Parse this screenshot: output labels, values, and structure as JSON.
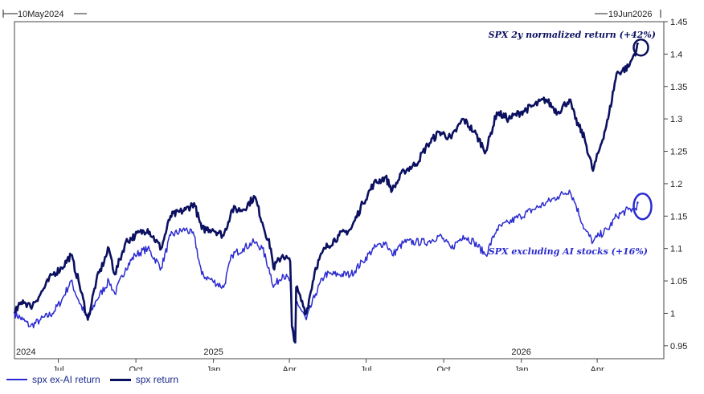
{
  "chart_data": {
    "type": "line",
    "top_left_label": "10May2024",
    "top_right_label": "19Jun2026",
    "x_range": [
      "2024-05-10",
      "2026-06-19"
    ],
    "ylim": [
      0.93,
      1.45
    ],
    "y_ticks": [
      0.95,
      1,
      1.05,
      1.1,
      1.15,
      1.2,
      1.25,
      1.3,
      1.35,
      1.4,
      1.45
    ],
    "y_tick_labels": [
      "0.95",
      "1",
      "1.05",
      "1.1",
      "1.15",
      "1.2",
      "1.25",
      "1.3",
      "1.35",
      "1.4",
      "1.45"
    ],
    "x_ticks": [
      {
        "date": "2024-07-01",
        "label": "Jul"
      },
      {
        "date": "2024-10-01",
        "label": "Oct"
      },
      {
        "date": "2025-01-01",
        "label": "Jan"
      },
      {
        "date": "2025-04-01",
        "label": "Apr"
      },
      {
        "date": "2025-07-01",
        "label": "Jul"
      },
      {
        "date": "2025-10-01",
        "label": "Oct"
      },
      {
        "date": "2026-01-01",
        "label": "Jan"
      },
      {
        "date": "2026-04-01",
        "label": "Apr"
      }
    ],
    "year_labels": [
      {
        "date": "2024-05-10",
        "label": "2024"
      },
      {
        "date": "2025-01-01",
        "label": "2025"
      },
      {
        "date": "2026-01-01",
        "label": "2026"
      }
    ],
    "grid": false,
    "legend_position": "bottom-left",
    "series": [
      {
        "name": "spx ex-AI return",
        "color": "#2b2bd0",
        "width": 1.5,
        "points": [
          [
            "2024-05-10",
            1.0
          ],
          [
            "2024-05-20",
            0.99
          ],
          [
            "2024-05-29",
            0.98
          ],
          [
            "2024-06-10",
            0.99
          ],
          [
            "2024-06-24",
            1.0
          ],
          [
            "2024-07-05",
            1.02
          ],
          [
            "2024-07-16",
            1.05
          ],
          [
            "2024-07-25",
            1.02
          ],
          [
            "2024-08-05",
            0.99
          ],
          [
            "2024-08-15",
            1.02
          ],
          [
            "2024-08-30",
            1.05
          ],
          [
            "2024-09-06",
            1.03
          ],
          [
            "2024-09-19",
            1.07
          ],
          [
            "2024-09-30",
            1.09
          ],
          [
            "2024-10-15",
            1.1
          ],
          [
            "2024-10-31",
            1.07
          ],
          [
            "2024-11-11",
            1.12
          ],
          [
            "2024-11-29",
            1.13
          ],
          [
            "2024-12-09",
            1.12
          ],
          [
            "2024-12-18",
            1.06
          ],
          [
            "2024-12-31",
            1.05
          ],
          [
            "2025-01-13",
            1.04
          ],
          [
            "2025-01-23",
            1.09
          ],
          [
            "2025-02-05",
            1.1
          ],
          [
            "2025-02-18",
            1.11
          ],
          [
            "2025-02-28",
            1.1
          ],
          [
            "2025-03-10",
            1.06
          ],
          [
            "2025-03-13",
            1.04
          ],
          [
            "2025-03-24",
            1.06
          ],
          [
            "2025-04-02",
            1.05
          ],
          [
            "2025-04-04",
            0.98
          ],
          [
            "2025-04-08",
            0.96
          ],
          [
            "2025-04-09",
            1.02
          ],
          [
            "2025-04-21",
            0.99
          ],
          [
            "2025-05-02",
            1.03
          ],
          [
            "2025-05-13",
            1.06
          ],
          [
            "2025-05-30",
            1.06
          ],
          [
            "2025-06-13",
            1.06
          ],
          [
            "2025-06-27",
            1.08
          ],
          [
            "2025-07-10",
            1.1
          ],
          [
            "2025-07-24",
            1.11
          ],
          [
            "2025-08-01",
            1.09
          ],
          [
            "2025-08-15",
            1.11
          ],
          [
            "2025-08-29",
            1.11
          ],
          [
            "2025-09-12",
            1.11
          ],
          [
            "2025-09-26",
            1.12
          ],
          [
            "2025-10-10",
            1.1
          ],
          [
            "2025-10-24",
            1.12
          ],
          [
            "2025-11-06",
            1.11
          ],
          [
            "2025-11-20",
            1.09
          ],
          [
            "2025-12-03",
            1.13
          ],
          [
            "2025-12-17",
            1.14
          ],
          [
            "2025-12-31",
            1.15
          ],
          [
            "2026-01-15",
            1.16
          ],
          [
            "2026-01-30",
            1.17
          ],
          [
            "2026-02-13",
            1.18
          ],
          [
            "2026-02-27",
            1.19
          ],
          [
            "2026-03-06",
            1.17
          ],
          [
            "2026-03-17",
            1.13
          ],
          [
            "2026-03-27",
            1.11
          ],
          [
            "2026-04-03",
            1.12
          ],
          [
            "2026-04-14",
            1.13
          ],
          [
            "2026-04-24",
            1.15
          ],
          [
            "2026-05-08",
            1.16
          ],
          [
            "2026-05-15",
            1.16
          ],
          [
            "2026-05-20",
            1.17
          ]
        ]
      },
      {
        "name": "spx return",
        "color": "#0b1060",
        "width": 2.6,
        "points": [
          [
            "2024-05-10",
            1.0
          ],
          [
            "2024-05-20",
            1.02
          ],
          [
            "2024-05-29",
            1.01
          ],
          [
            "2024-06-10",
            1.03
          ],
          [
            "2024-06-24",
            1.06
          ],
          [
            "2024-07-05",
            1.07
          ],
          [
            "2024-07-16",
            1.09
          ],
          [
            "2024-07-25",
            1.05
          ],
          [
            "2024-08-05",
            0.99
          ],
          [
            "2024-08-15",
            1.05
          ],
          [
            "2024-08-30",
            1.1
          ],
          [
            "2024-09-06",
            1.06
          ],
          [
            "2024-09-19",
            1.11
          ],
          [
            "2024-09-30",
            1.12
          ],
          [
            "2024-10-15",
            1.13
          ],
          [
            "2024-10-31",
            1.1
          ],
          [
            "2024-11-11",
            1.15
          ],
          [
            "2024-11-29",
            1.16
          ],
          [
            "2024-12-09",
            1.17
          ],
          [
            "2024-12-18",
            1.13
          ],
          [
            "2024-12-31",
            1.13
          ],
          [
            "2025-01-13",
            1.12
          ],
          [
            "2025-01-23",
            1.16
          ],
          [
            "2025-02-05",
            1.16
          ],
          [
            "2025-02-19",
            1.18
          ],
          [
            "2025-02-28",
            1.14
          ],
          [
            "2025-03-10",
            1.1
          ],
          [
            "2025-03-13",
            1.07
          ],
          [
            "2025-03-24",
            1.09
          ],
          [
            "2025-04-02",
            1.08
          ],
          [
            "2025-04-04",
            0.98
          ],
          [
            "2025-04-08",
            0.955
          ],
          [
            "2025-04-09",
            1.04
          ],
          [
            "2025-04-21",
            1.0
          ],
          [
            "2025-05-02",
            1.07
          ],
          [
            "2025-05-13",
            1.1
          ],
          [
            "2025-05-30",
            1.12
          ],
          [
            "2025-06-13",
            1.13
          ],
          [
            "2025-06-27",
            1.17
          ],
          [
            "2025-07-10",
            1.2
          ],
          [
            "2025-07-24",
            1.21
          ],
          [
            "2025-08-01",
            1.19
          ],
          [
            "2025-08-15",
            1.22
          ],
          [
            "2025-08-29",
            1.23
          ],
          [
            "2025-09-12",
            1.26
          ],
          [
            "2025-09-26",
            1.28
          ],
          [
            "2025-10-10",
            1.27
          ],
          [
            "2025-10-24",
            1.3
          ],
          [
            "2025-11-06",
            1.28
          ],
          [
            "2025-11-20",
            1.25
          ],
          [
            "2025-12-03",
            1.31
          ],
          [
            "2025-12-17",
            1.3
          ],
          [
            "2025-12-31",
            1.31
          ],
          [
            "2026-01-15",
            1.32
          ],
          [
            "2026-01-30",
            1.33
          ],
          [
            "2026-02-13",
            1.31
          ],
          [
            "2026-02-27",
            1.33
          ],
          [
            "2026-03-06",
            1.3
          ],
          [
            "2026-03-17",
            1.27
          ],
          [
            "2026-03-27",
            1.22
          ],
          [
            "2026-04-03",
            1.25
          ],
          [
            "2026-04-14",
            1.3
          ],
          [
            "2026-04-24",
            1.37
          ],
          [
            "2026-05-08",
            1.38
          ],
          [
            "2026-05-15",
            1.4
          ],
          [
            "2026-05-20",
            1.415
          ]
        ]
      }
    ],
    "annotations": [
      {
        "text": "SPX 2y normalized return (+42%)",
        "series": "spx return",
        "date": "2026-05-20",
        "value": 1.415
      },
      {
        "text": "SPX excluding AI stocks (+16%)",
        "series": "spx ex-AI return",
        "date": "2026-05-20",
        "value": 1.165
      }
    ]
  }
}
